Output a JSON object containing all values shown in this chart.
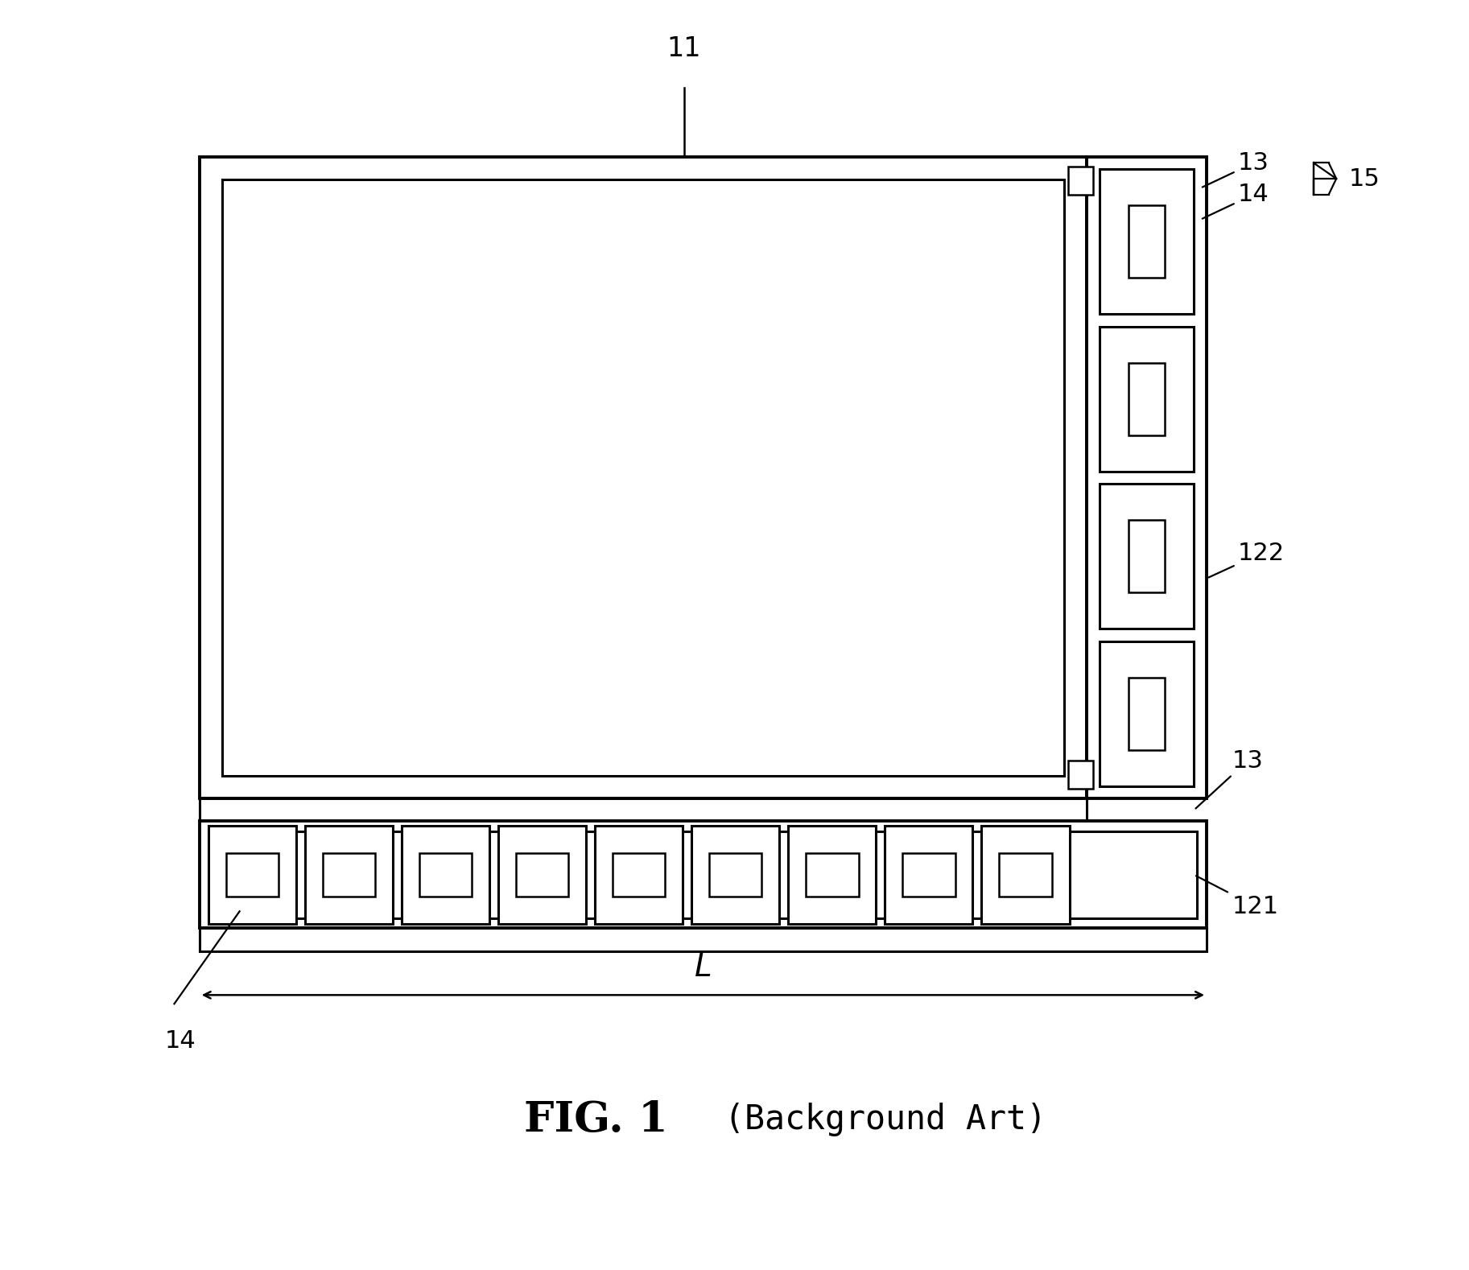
{
  "bg_color": "#ffffff",
  "line_color": "#000000",
  "fig_width": 18.25,
  "fig_height": 15.78,
  "title": "FIG. 1",
  "subtitle": "(Background Art)",
  "title_fontsize": 38,
  "subtitle_fontsize": 30,
  "label_fontsize": 24,
  "lw_thick": 2.8,
  "lw_med": 2.2,
  "lw_thin": 1.8
}
